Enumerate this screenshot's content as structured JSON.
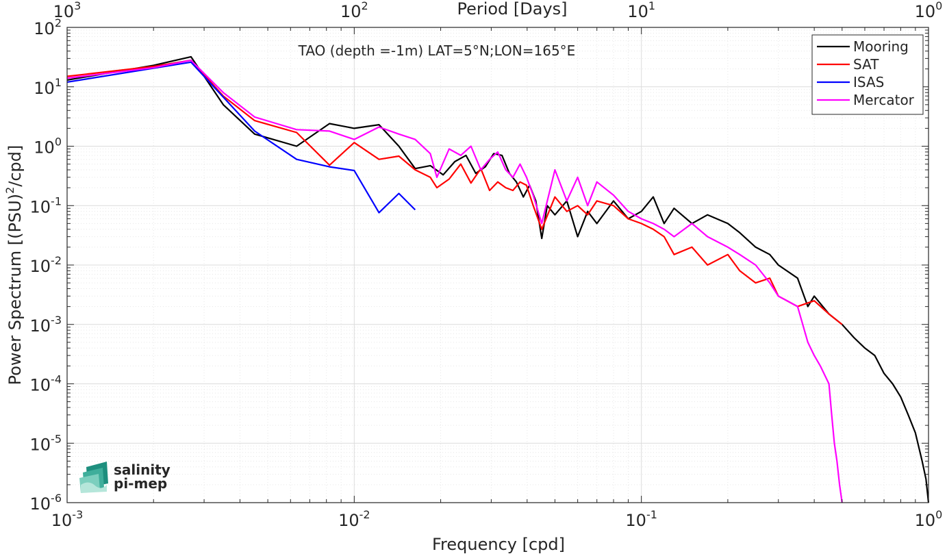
{
  "chart_data": {
    "type": "line",
    "title": "TAO (depth =-1m) LAT=5°N;LON=165°E",
    "xlabel": "Frequency [cpd]",
    "ylabel": "Power Spectrum [(PSU)2/cpd]",
    "ylabel_parts": {
      "before": "Power Spectrum [(PSU)",
      "sup": "2",
      "after": "/cpd]"
    },
    "top_xlabel": "Period [Days]",
    "x_scale": "log",
    "y_scale": "log",
    "xlim": [
      0.001,
      1
    ],
    "ylim": [
      1e-06,
      100
    ],
    "grid": true,
    "minor_grid": true,
    "legend_position": "top-right",
    "x_ticks": [
      {
        "base": "10",
        "exp": "-3",
        "value": 0.001
      },
      {
        "base": "10",
        "exp": "-2",
        "value": 0.01
      },
      {
        "base": "10",
        "exp": "-1",
        "value": 0.1
      },
      {
        "base": "10",
        "exp": "0",
        "value": 1
      }
    ],
    "top_ticks": [
      {
        "base": "10",
        "exp": "3",
        "value": 0.001
      },
      {
        "base": "10",
        "exp": "2",
        "value": 0.01
      },
      {
        "base": "10",
        "exp": "1",
        "value": 0.1
      },
      {
        "base": "10",
        "exp": "0",
        "value": 1
      }
    ],
    "y_ticks": [
      {
        "base": "10",
        "exp": "-6",
        "value": 1e-06
      },
      {
        "base": "10",
        "exp": "-5",
        "value": 1e-05
      },
      {
        "base": "10",
        "exp": "-4",
        "value": 0.0001
      },
      {
        "base": "10",
        "exp": "-3",
        "value": 0.001
      },
      {
        "base": "10",
        "exp": "-2",
        "value": 0.01
      },
      {
        "base": "10",
        "exp": "-1",
        "value": 0.1
      },
      {
        "base": "10",
        "exp": "0",
        "value": 1
      },
      {
        "base": "10",
        "exp": "1",
        "value": 10
      },
      {
        "base": "10",
        "exp": "2",
        "value": 100
      }
    ],
    "series": [
      {
        "name": "Mooring",
        "color": "#000000",
        "points": [
          [
            0.001,
            13
          ],
          [
            0.002,
            23
          ],
          [
            0.0027,
            32
          ],
          [
            0.0035,
            5
          ],
          [
            0.0045,
            1.6
          ],
          [
            0.0063,
            1.0
          ],
          [
            0.0082,
            2.4
          ],
          [
            0.01,
            2.0
          ],
          [
            0.0122,
            2.3
          ],
          [
            0.0143,
            1.0
          ],
          [
            0.0163,
            0.42
          ],
          [
            0.0184,
            0.47
          ],
          [
            0.0204,
            0.33
          ],
          [
            0.0224,
            0.55
          ],
          [
            0.0245,
            0.7
          ],
          [
            0.0265,
            0.35
          ],
          [
            0.0286,
            0.45
          ],
          [
            0.0306,
            0.75
          ],
          [
            0.0327,
            0.7
          ],
          [
            0.0347,
            0.35
          ],
          [
            0.0367,
            0.25
          ],
          [
            0.0388,
            0.14
          ],
          [
            0.0408,
            0.22
          ],
          [
            0.0429,
            0.12
          ],
          [
            0.045,
            0.028
          ],
          [
            0.047,
            0.1
          ],
          [
            0.05,
            0.07
          ],
          [
            0.055,
            0.12
          ],
          [
            0.06,
            0.03
          ],
          [
            0.065,
            0.08
          ],
          [
            0.07,
            0.05
          ],
          [
            0.08,
            0.12
          ],
          [
            0.09,
            0.06
          ],
          [
            0.1,
            0.08
          ],
          [
            0.11,
            0.14
          ],
          [
            0.12,
            0.05
          ],
          [
            0.13,
            0.09
          ],
          [
            0.15,
            0.05
          ],
          [
            0.17,
            0.07
          ],
          [
            0.2,
            0.05
          ],
          [
            0.22,
            0.035
          ],
          [
            0.25,
            0.02
          ],
          [
            0.28,
            0.015
          ],
          [
            0.3,
            0.01
          ],
          [
            0.35,
            0.006
          ],
          [
            0.38,
            0.002
          ],
          [
            0.4,
            0.003
          ],
          [
            0.45,
            0.0015
          ],
          [
            0.5,
            0.001
          ],
          [
            0.55,
            0.0006
          ],
          [
            0.6,
            0.0004
          ],
          [
            0.65,
            0.0003
          ],
          [
            0.7,
            0.00015
          ],
          [
            0.75,
            0.0001
          ],
          [
            0.8,
            6e-05
          ],
          [
            0.85,
            3e-05
          ],
          [
            0.9,
            1.5e-05
          ],
          [
            0.95,
            5e-06
          ],
          [
            0.98,
            2.5e-06
          ],
          [
            1.0,
            1e-06
          ]
        ]
      },
      {
        "name": "SAT",
        "color": "#ff0000",
        "points": [
          [
            0.001,
            15
          ],
          [
            0.002,
            22
          ],
          [
            0.0027,
            28
          ],
          [
            0.0035,
            7
          ],
          [
            0.0045,
            2.7
          ],
          [
            0.0063,
            1.7
          ],
          [
            0.0082,
            0.48
          ],
          [
            0.01,
            1.15
          ],
          [
            0.0122,
            0.6
          ],
          [
            0.0143,
            0.68
          ],
          [
            0.0163,
            0.4
          ],
          [
            0.0184,
            0.3
          ],
          [
            0.0194,
            0.2
          ],
          [
            0.0214,
            0.28
          ],
          [
            0.0235,
            0.5
          ],
          [
            0.0255,
            0.24
          ],
          [
            0.0276,
            0.42
          ],
          [
            0.0296,
            0.18
          ],
          [
            0.0316,
            0.25
          ],
          [
            0.0337,
            0.2
          ],
          [
            0.0357,
            0.18
          ],
          [
            0.0378,
            0.25
          ],
          [
            0.0398,
            0.22
          ],
          [
            0.042,
            0.1
          ],
          [
            0.045,
            0.04
          ],
          [
            0.05,
            0.14
          ],
          [
            0.055,
            0.08
          ],
          [
            0.06,
            0.1
          ],
          [
            0.065,
            0.07
          ],
          [
            0.07,
            0.12
          ],
          [
            0.08,
            0.1
          ],
          [
            0.09,
            0.06
          ],
          [
            0.1,
            0.05
          ],
          [
            0.11,
            0.04
          ],
          [
            0.12,
            0.03
          ],
          [
            0.13,
            0.015
          ],
          [
            0.15,
            0.02
          ],
          [
            0.17,
            0.01
          ],
          [
            0.2,
            0.015
          ],
          [
            0.22,
            0.008
          ],
          [
            0.25,
            0.005
          ],
          [
            0.28,
            0.006
          ],
          [
            0.3,
            0.003
          ],
          [
            0.35,
            0.002
          ],
          [
            0.4,
            0.0025
          ],
          [
            0.45,
            0.0015
          ],
          [
            0.5,
            0.001
          ]
        ]
      },
      {
        "name": "ISAS",
        "color": "#0000ff",
        "points": [
          [
            0.001,
            12
          ],
          [
            0.0027,
            26
          ],
          [
            0.0045,
            1.8
          ],
          [
            0.0063,
            0.6
          ],
          [
            0.0082,
            0.45
          ],
          [
            0.01,
            0.39
          ],
          [
            0.0122,
            0.076
          ],
          [
            0.0143,
            0.16
          ],
          [
            0.0163,
            0.085
          ]
        ]
      },
      {
        "name": "Mercator",
        "color": "#ff00ff",
        "points": [
          [
            0.001,
            14
          ],
          [
            0.002,
            21
          ],
          [
            0.0027,
            28
          ],
          [
            0.0035,
            8
          ],
          [
            0.0045,
            3.1
          ],
          [
            0.0063,
            1.9
          ],
          [
            0.0082,
            1.8
          ],
          [
            0.01,
            1.3
          ],
          [
            0.0122,
            2.1
          ],
          [
            0.0143,
            1.6
          ],
          [
            0.0163,
            1.3
          ],
          [
            0.0184,
            0.75
          ],
          [
            0.0194,
            0.3
          ],
          [
            0.0214,
            0.9
          ],
          [
            0.0235,
            0.7
          ],
          [
            0.0255,
            1.0
          ],
          [
            0.0276,
            0.4
          ],
          [
            0.0296,
            0.6
          ],
          [
            0.0316,
            0.8
          ],
          [
            0.0337,
            0.4
          ],
          [
            0.0357,
            0.3
          ],
          [
            0.0378,
            0.5
          ],
          [
            0.0398,
            0.3
          ],
          [
            0.042,
            0.15
          ],
          [
            0.045,
            0.05
          ],
          [
            0.05,
            0.4
          ],
          [
            0.055,
            0.12
          ],
          [
            0.06,
            0.3
          ],
          [
            0.065,
            0.1
          ],
          [
            0.07,
            0.25
          ],
          [
            0.08,
            0.15
          ],
          [
            0.09,
            0.08
          ],
          [
            0.1,
            0.06
          ],
          [
            0.11,
            0.05
          ],
          [
            0.12,
            0.04
          ],
          [
            0.13,
            0.03
          ],
          [
            0.15,
            0.05
          ],
          [
            0.17,
            0.03
          ],
          [
            0.2,
            0.02
          ],
          [
            0.22,
            0.015
          ],
          [
            0.25,
            0.01
          ],
          [
            0.28,
            0.005
          ],
          [
            0.3,
            0.003
          ],
          [
            0.35,
            0.002
          ],
          [
            0.38,
            0.0005
          ],
          [
            0.4,
            0.0003
          ],
          [
            0.42,
            0.0002
          ],
          [
            0.45,
            0.0001
          ],
          [
            0.46,
            3e-05
          ],
          [
            0.47,
            1e-05
          ],
          [
            0.48,
            5e-06
          ],
          [
            0.49,
            2e-06
          ],
          [
            0.5,
            1e-06
          ]
        ]
      }
    ]
  },
  "logo": {
    "line1": "salinity",
    "line2": "pi-mep",
    "color": "#1a9e8c"
  }
}
